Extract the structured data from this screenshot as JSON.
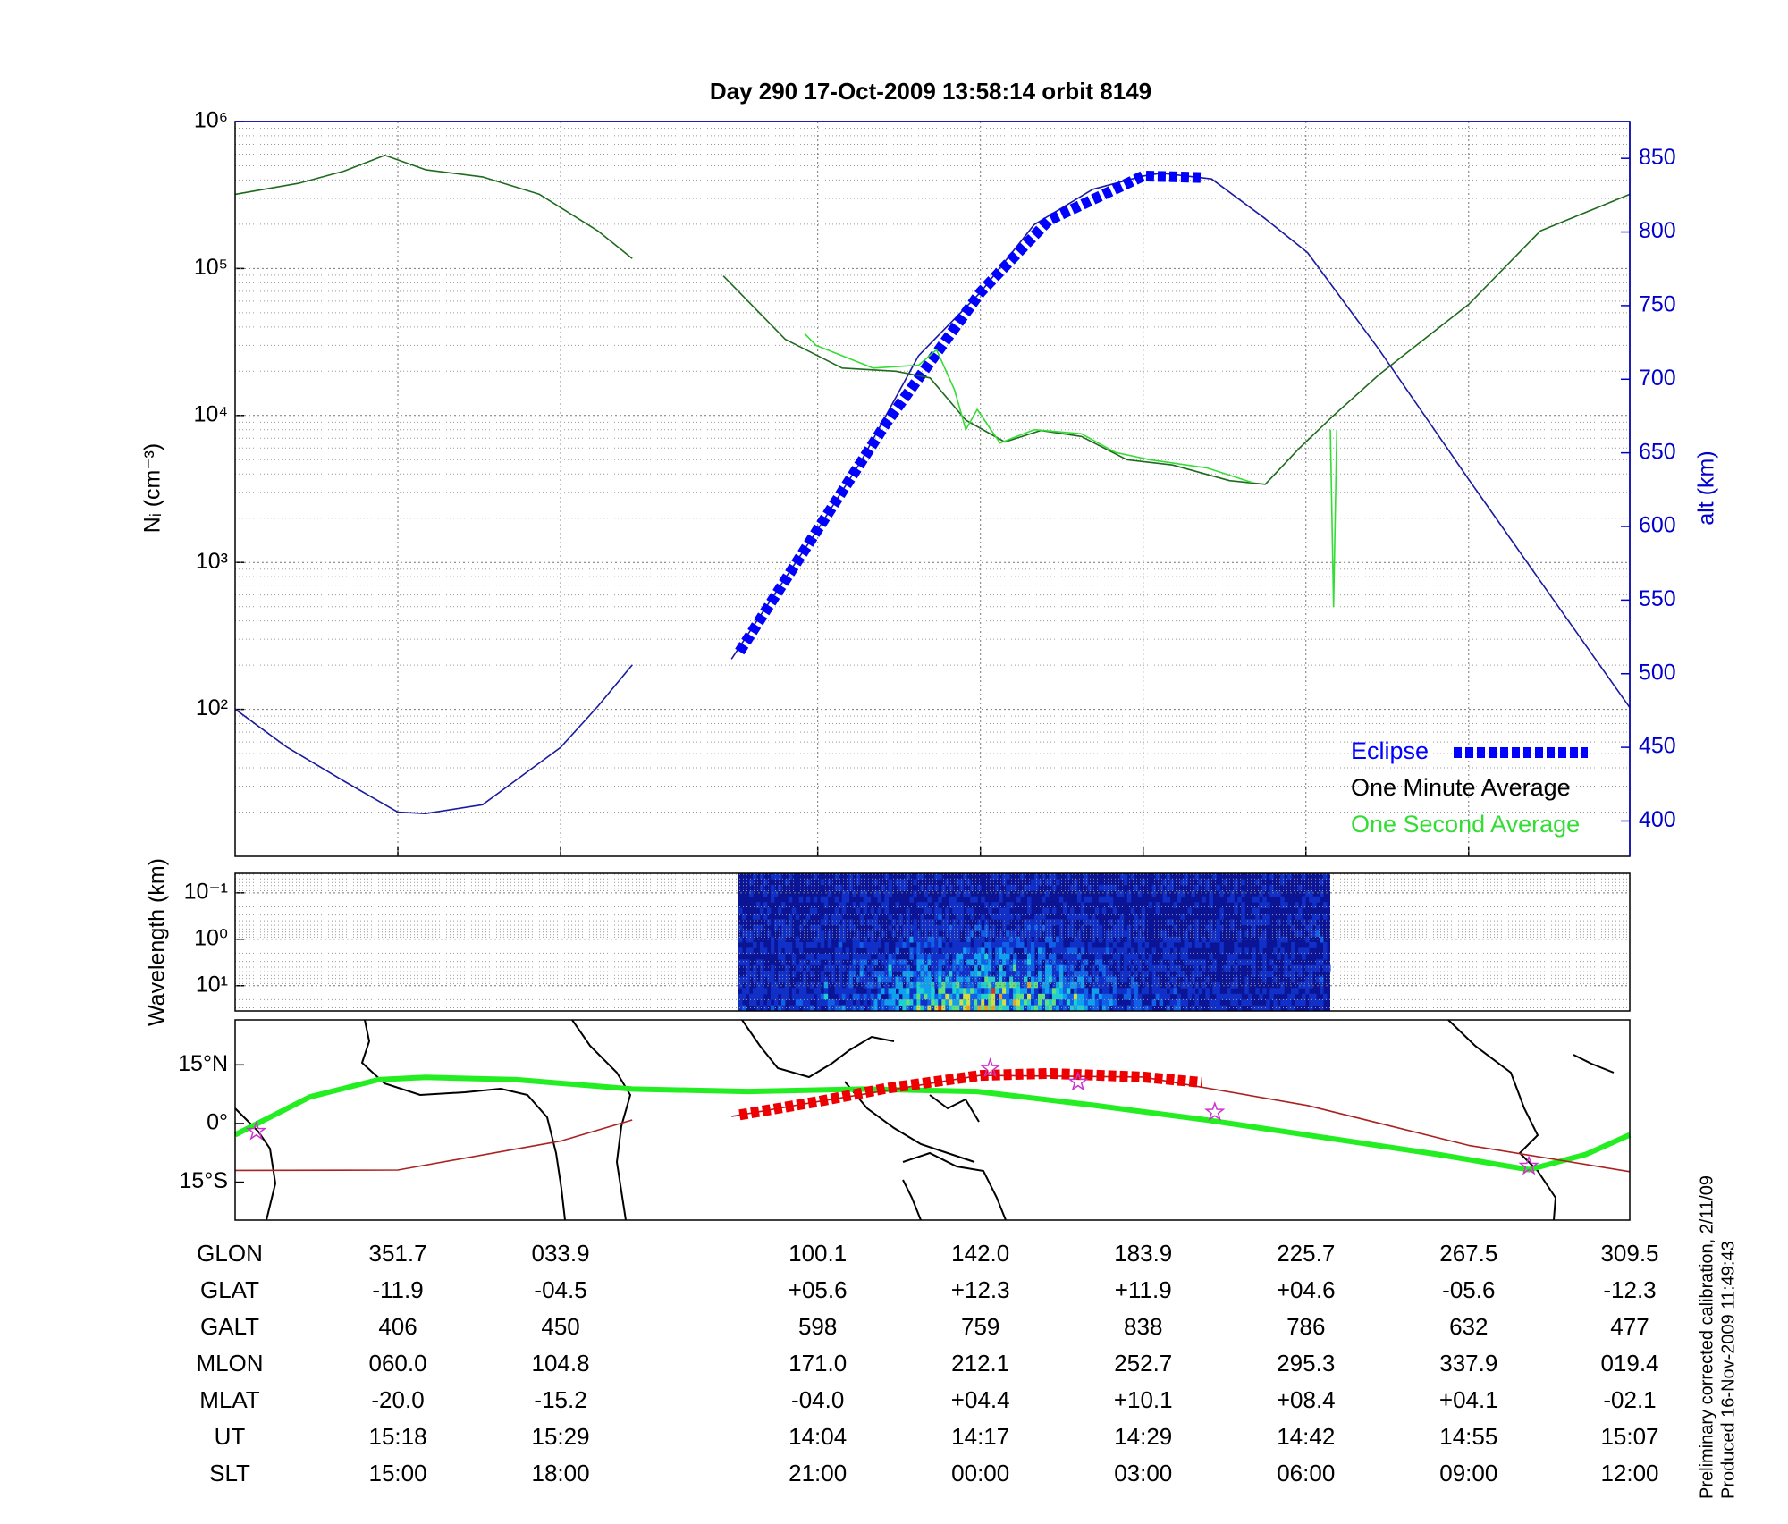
{
  "chart_data": [
    {
      "type": "line",
      "title": "Day 290  17-Oct-2009 13:58:14   orbit 8149",
      "ylabel": "Nᵢ (cm⁻³)",
      "y2label": "alt (km)",
      "y2color": "#0000cc",
      "xlim": [
        0,
        8.57
      ],
      "xticks": [
        1,
        2,
        3.58,
        4.58,
        5.58,
        6.58,
        7.58
      ],
      "ylog": true,
      "ylim": [
        10,
        1000000
      ],
      "yticks": [
        {
          "value": 100,
          "label": "10²"
        },
        {
          "value": 1000,
          "label": "10³"
        },
        {
          "value": 10000,
          "label": "10⁴"
        },
        {
          "value": 100000,
          "label": "10⁵"
        },
        {
          "value": 1000000,
          "label": "10⁶"
        }
      ],
      "y2lim": [
        376,
        875
      ],
      "y2ticks": [
        400,
        450,
        500,
        550,
        600,
        650,
        700,
        750,
        800,
        850
      ],
      "grid": true,
      "legend": "lower right",
      "series": [
        {
          "color": "#1a1aa0",
          "axis": "y2",
          "style": "solid",
          "x": [
            0,
            0.32,
            0.67,
            1.0,
            1.17,
            1.52,
            2.0,
            2.23,
            2.44,
            2.75,
            3.05,
            3.58,
            3.85,
            4.2,
            4.58,
            4.91,
            5.27,
            5.58,
            5.69,
            6.0,
            6.33,
            6.59,
            7.03,
            7.58,
            8.09,
            8.57
          ],
          "values": [
            476,
            450,
            427,
            406,
            405,
            411,
            450,
            478,
            506,
            null,
            510,
            598,
            645,
            716,
            759,
            805,
            829,
            838,
            840,
            836,
            809,
            786,
            720,
            632,
            552,
            477
          ]
        },
        {
          "name": "Eclipse",
          "color": "#0000ff",
          "axis": "y2",
          "style": "dashed-thick",
          "x": [
            3.1,
            3.58,
            4.0,
            4.58,
            5.0,
            5.58,
            5.94
          ],
          "values": [
            515,
            598,
            670,
            759,
            808,
            838,
            837
          ]
        },
        {
          "name": "One Minute Average",
          "color": "#1e6b1e",
          "label_color": "#000000",
          "style": "solid",
          "x": [
            0,
            0.39,
            0.67,
            0.92,
            1.17,
            1.52,
            1.87,
            2.23,
            2.44,
            2.7,
            3.0,
            3.38,
            3.73,
            4.06,
            4.27,
            4.49,
            4.73,
            4.95,
            5.2,
            5.48,
            5.76,
            6.11,
            6.33,
            6.54,
            6.75,
            7.03,
            7.58,
            8.02,
            8.57
          ],
          "values": [
            320000,
            380000,
            460000,
            590000,
            470000,
            420000,
            320000,
            180000,
            117000,
            null,
            89000,
            33000,
            21000,
            20000,
            18000,
            9300,
            6600,
            7900,
            7200,
            5000,
            4600,
            3600,
            3400,
            6000,
            10000,
            19000,
            57000,
            180000,
            320000
          ]
        },
        {
          "name": "One Second Average",
          "color": "#33dd33",
          "style": "solid",
          "x": [
            3.5,
            3.57,
            3.92,
            4.2,
            4.31,
            4.42,
            4.49,
            4.56,
            4.7,
            4.91,
            5.2,
            5.41,
            5.62,
            5.97,
            6.25,
            6.5,
            6.73,
            6.75,
            6.77
          ],
          "values": [
            36000,
            30000,
            21000,
            22000,
            28000,
            15000,
            8000,
            11000,
            6500,
            8000,
            7500,
            5600,
            5000,
            4400,
            3500,
            null,
            8000,
            500,
            8000
          ]
        }
      ]
    },
    {
      "type": "spectrogram",
      "ylabel": "Wavelength (km)",
      "ylog": true,
      "ylim": [
        35,
        0.038
      ],
      "yticks": [
        {
          "value": 0.1,
          "label": "10⁻¹"
        },
        {
          "value": 1,
          "label": "10⁰"
        },
        {
          "value": 10,
          "label": "10¹"
        }
      ],
      "grid": true
    },
    {
      "type": "map",
      "xlim": [
        0,
        8.57
      ],
      "ylim": [
        -24.7,
        26.5
      ],
      "yticks": [
        {
          "value": 15,
          "label": "15°N"
        },
        {
          "value": 0,
          "label": "0°"
        },
        {
          "value": -15,
          "label": "15°S"
        }
      ],
      "grid": false,
      "series": [
        {
          "color": "#22ee22",
          "style": "thick",
          "x": [
            0,
            0.46,
            0.88,
            1.17,
            1.73,
            2.44,
            3.15,
            3.86,
            4.56,
            5.27,
            5.97,
            6.68,
            7.39,
            7.95,
            8.3,
            8.57
          ],
          "values": [
            -2.9,
            6.8,
            11.2,
            11.8,
            11.2,
            8.8,
            8.2,
            8.8,
            8.2,
            4.7,
            0.9,
            -3.5,
            -7.9,
            -11.8,
            -7.9,
            -2.9
          ]
        },
        {
          "color": "#aa2222",
          "style": "solid",
          "x": [
            0,
            1.0,
            2.0,
            2.44,
            2.75,
            3.05,
            3.58,
            4.58,
            5.58,
            6.59,
            7.58,
            8.57
          ],
          "values": [
            -12.0,
            -11.9,
            -4.5,
            0.9,
            null,
            1.8,
            5.6,
            12.3,
            11.9,
            4.6,
            -5.6,
            -12.3
          ]
        },
        {
          "color": "#ee0000",
          "style": "dashed-thick",
          "x": [
            3.1,
            3.58,
            4.0,
            4.58,
            5.0,
            5.58,
            5.94
          ],
          "values": [
            2.2,
            5.6,
            9.0,
            12.3,
            12.8,
            11.9,
            10.5
          ]
        },
        {
          "color": "#cc33cc",
          "style": "star",
          "x": [
            0.13,
            4.64,
            5.18,
            6.02,
            7.95
          ],
          "values": [
            -2,
            14.1,
            10.6,
            2.9,
            -10.9
          ]
        }
      ]
    }
  ],
  "table": {
    "rows": [
      {
        "label": "GLON",
        "values": [
          "351.7",
          "033.9",
          "100.1",
          "142.0",
          "183.9",
          "225.7",
          "267.5",
          "309.5"
        ]
      },
      {
        "label": "GLAT",
        "values": [
          "-11.9",
          "-04.5",
          "+05.6",
          "+12.3",
          "+11.9",
          "+04.6",
          "-05.6",
          "-12.3"
        ]
      },
      {
        "label": "GALT",
        "values": [
          "406",
          "450",
          "598",
          "759",
          "838",
          "786",
          "632",
          "477"
        ]
      },
      {
        "label": "MLON",
        "values": [
          "060.0",
          "104.8",
          "171.0",
          "212.1",
          "252.7",
          "295.3",
          "337.9",
          "019.4"
        ]
      },
      {
        "label": "MLAT",
        "values": [
          "-20.0",
          "-15.2",
          "-04.0",
          "+04.4",
          "+10.1",
          "+08.4",
          "+04.1",
          "-02.1"
        ]
      },
      {
        "label": "UT",
        "values": [
          "15:18",
          "15:29",
          "14:04",
          "14:17",
          "14:29",
          "14:42",
          "14:55",
          "15:07"
        ]
      },
      {
        "label": "SLT",
        "values": [
          "15:00",
          "18:00",
          "21:00",
          "00:00",
          "03:00",
          "06:00",
          "09:00",
          "12:00"
        ]
      }
    ]
  },
  "notes": [
    "Preliminary corrected calibration, 2/11/09",
    "Produced 16-Nov-2009 11:49:43"
  ]
}
